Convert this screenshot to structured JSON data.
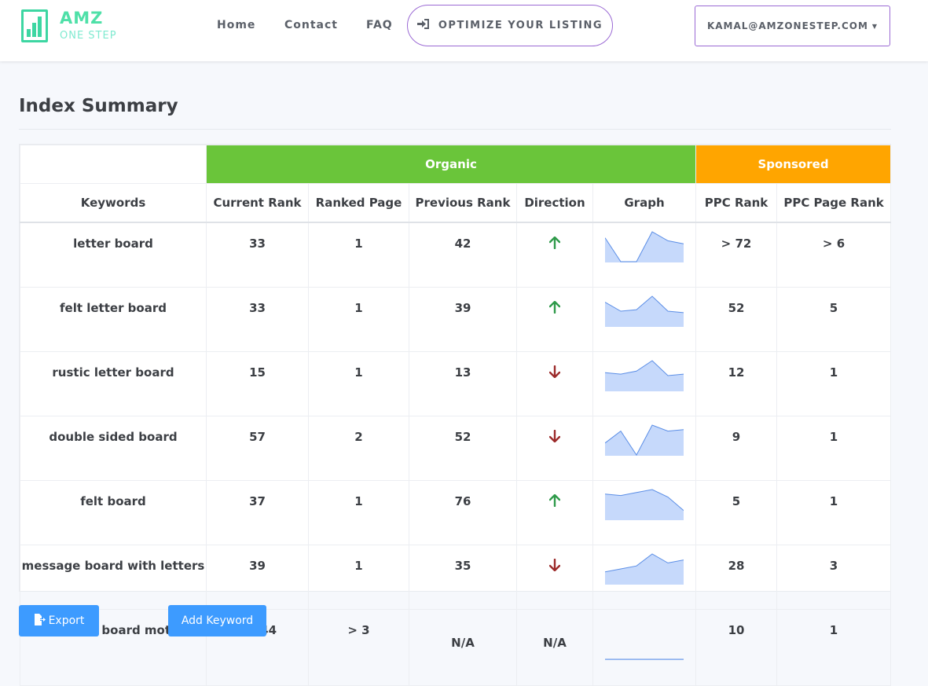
{
  "brand": {
    "name": "AMZ",
    "tagline": "ONE STEP"
  },
  "nav": {
    "home": "Home",
    "contact": "Contact",
    "faq": "FAQ",
    "optimize": "OPTIMIZE YOUR LISTING",
    "account": "KAMAL@AMZONESTEP.COM"
  },
  "page": {
    "title": "Index Summary"
  },
  "table": {
    "groups": {
      "organic": "Organic",
      "sponsored": "Sponsored"
    },
    "columns": {
      "keywords": "Keywords",
      "current_rank": "Current Rank",
      "ranked_page": "Ranked Page",
      "previous_rank": "Previous Rank",
      "direction": "Direction",
      "graph": "Graph",
      "ppc_rank": "PPC Rank",
      "ppc_page_rank": "PPC Page Rank"
    },
    "rows": [
      {
        "keyword": "letter board",
        "current_rank": "33",
        "ranked_page": "1",
        "previous_rank": "42",
        "direction": "up",
        "ppc_rank": "> 72",
        "ppc_page_rank": "> 6",
        "trend": [
          8,
          0,
          0,
          10,
          7,
          6
        ]
      },
      {
        "keyword": "felt letter board",
        "current_rank": "33",
        "ranked_page": "1",
        "previous_rank": "39",
        "direction": "up",
        "ppc_rank": "52",
        "ppc_page_rank": "5",
        "trend": [
          8,
          5,
          5.5,
          10,
          5,
          4.5
        ]
      },
      {
        "keyword": "rustic letter board",
        "current_rank": "15",
        "ranked_page": "1",
        "previous_rank": "13",
        "direction": "down",
        "ppc_rank": "12",
        "ppc_page_rank": "1",
        "trend": [
          6,
          5.5,
          6.5,
          10,
          5,
          5.5
        ]
      },
      {
        "keyword": "double sided board",
        "current_rank": "57",
        "ranked_page": "2",
        "previous_rank": "52",
        "direction": "down",
        "ppc_rank": "9",
        "ppc_page_rank": "1",
        "trend": [
          4,
          8,
          0,
          10,
          8,
          8.5
        ]
      },
      {
        "keyword": "felt board",
        "current_rank": "37",
        "ranked_page": "1",
        "previous_rank": "76",
        "direction": "up",
        "ppc_rank": "5",
        "ppc_page_rank": "1",
        "trend": [
          8.5,
          8,
          9,
          10,
          7.5,
          3
        ]
      },
      {
        "keyword": "message board with letters",
        "current_rank": "39",
        "ranked_page": "1",
        "previous_rank": "35",
        "direction": "down",
        "ppc_rank": "28",
        "ppc_page_rank": "3",
        "trend": [
          4,
          5,
          6,
          10,
          7,
          8
        ]
      },
      {
        "keyword": "felt letter board mother",
        "current_rank": "> 144",
        "ranked_page": "> 3",
        "previous_rank": "N/A",
        "direction": "N/A",
        "ppc_rank": "10",
        "ppc_page_rank": "1",
        "trend": [
          0,
          0,
          0,
          0,
          0,
          0
        ]
      }
    ]
  },
  "actions": {
    "export": "Export",
    "add_keyword": "Add Keyword"
  },
  "colors": {
    "organic": "#6ac53a",
    "sponsored": "#ffa500",
    "primary": "#3d9bff",
    "accent_border": "#9b6ad4",
    "trend_up": "#2f9a4a",
    "trend_down": "#9c2b2b",
    "sparkline_fill": "#c6d9fb",
    "sparkline_line": "#5b8ee6"
  }
}
